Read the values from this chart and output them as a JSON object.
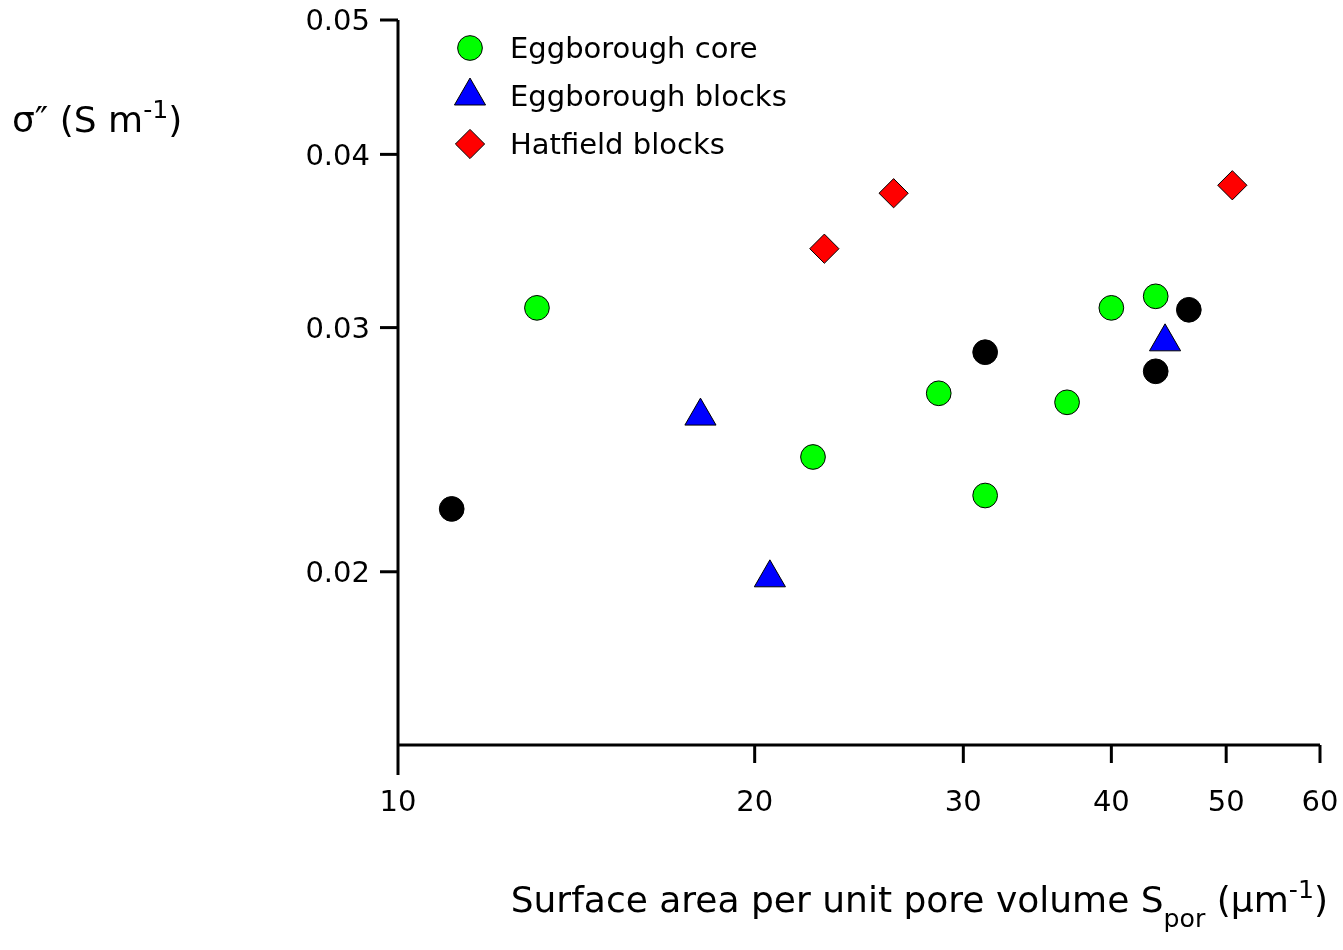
{
  "chart_data": {
    "type": "scatter",
    "xlabel": "Surface area per unit pore volume S$_{por}$ (μm$^{-1}$)",
    "ylabel": "σ″ (S m$^{-1}$)",
    "log": "xy",
    "xlim": [
      10,
      60
    ],
    "xticks": [
      10,
      20,
      30,
      40,
      50,
      60
    ],
    "ylim": [
      0.015,
      0.05
    ],
    "yticks": [
      0.02,
      0.03,
      0.04,
      0.05
    ],
    "grid": false,
    "legend": "top left",
    "series": [
      {
        "name": "Eggborough core",
        "color": "#00ff00",
        "marker": "circle",
        "x": [
          13.1,
          22.4,
          28.6,
          31.3,
          36.7,
          40.0,
          43.6
        ],
        "values": [
          0.031,
          0.0242,
          0.0269,
          0.0227,
          0.0265,
          0.031,
          0.0316
        ]
      },
      {
        "name": "Eggborough blocks",
        "color": "#0000ff",
        "marker": "triangle",
        "x": [
          18.0,
          20.6,
          44.4
        ],
        "values": [
          0.0259,
          0.0198,
          0.0293
        ]
      },
      {
        "name": "Hatfield blocks",
        "color": "#ff0000",
        "marker": "diamond",
        "x": [
          22.9,
          26.2,
          50.6
        ],
        "values": [
          0.0342,
          0.0375,
          0.038
        ]
      },
      {
        "color": "#000000",
        "marker": "circle",
        "x": [
          11.1,
          31.3,
          43.6,
          46.5
        ],
        "values": [
          0.0222,
          0.0288,
          0.0279,
          0.0309
        ]
      }
    ]
  }
}
